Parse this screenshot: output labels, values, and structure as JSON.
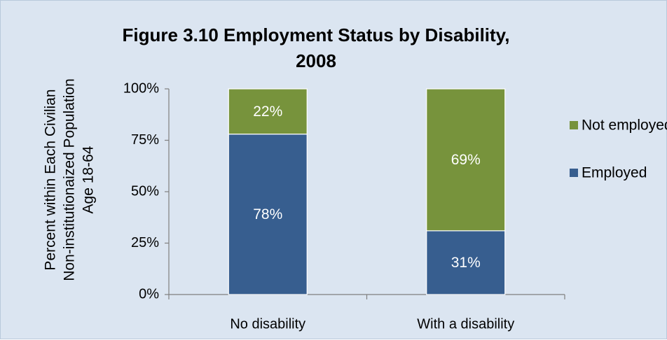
{
  "chart_data": {
    "type": "bar",
    "stacked": true,
    "percent_stacked": true,
    "title_line1": "Figure 3.10 Employment Status by Disability,",
    "title_line2": "2008",
    "ylabel_lines": [
      "Percent within Each Civilian",
      "Non-institutionaized Population",
      "Age 18-64"
    ],
    "categories": [
      "No disability",
      "With a disability"
    ],
    "series": [
      {
        "name": "Employed",
        "values": [
          78,
          31
        ],
        "labels": [
          "78%",
          "31%"
        ],
        "color": "#375e8f"
      },
      {
        "name": "Not employed",
        "values": [
          22,
          69
        ],
        "labels": [
          "22%",
          "69%"
        ],
        "color": "#77933c"
      }
    ],
    "yticks": [
      "0%",
      "25%",
      "50%",
      "75%",
      "100%"
    ],
    "ylim": [
      0,
      100
    ],
    "legend": {
      "position": "right",
      "order": [
        "Not employed",
        "Employed"
      ]
    },
    "grid": false
  },
  "colors": {
    "background": "#dbe5f1",
    "axis": "#7f7f7f",
    "bar_separator": "#ffffff"
  }
}
